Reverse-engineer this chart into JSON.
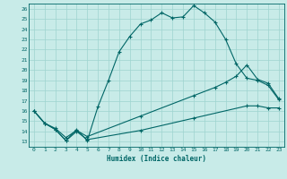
{
  "xlabel": "Humidex (Indice chaleur)",
  "background_color": "#c8ebe8",
  "line_color": "#006666",
  "grid_color": "#9ed4cf",
  "xlim": [
    -0.5,
    23.5
  ],
  "ylim": [
    12.5,
    26.5
  ],
  "yticks": [
    13,
    14,
    15,
    16,
    17,
    18,
    19,
    20,
    21,
    22,
    23,
    24,
    25,
    26
  ],
  "xticks": [
    0,
    1,
    2,
    3,
    4,
    5,
    6,
    7,
    8,
    9,
    10,
    11,
    12,
    13,
    14,
    15,
    16,
    17,
    18,
    19,
    20,
    21,
    22,
    23
  ],
  "line1_x": [
    0,
    1,
    2,
    3,
    4,
    5,
    6,
    7,
    8,
    9,
    10,
    11,
    12,
    13,
    14,
    15,
    16,
    17,
    18,
    19,
    20,
    21,
    22,
    23
  ],
  "line1_y": [
    16.0,
    14.8,
    14.2,
    13.1,
    14.2,
    13.1,
    16.4,
    19.0,
    21.8,
    23.3,
    24.5,
    24.9,
    25.6,
    25.1,
    25.2,
    26.3,
    25.6,
    24.7,
    23.0,
    20.6,
    19.2,
    19.0,
    18.5,
    17.1
  ],
  "line2_x": [
    0,
    1,
    2,
    3,
    4,
    5,
    10,
    15,
    17,
    18,
    19,
    20,
    21,
    22,
    23
  ],
  "line2_y": [
    16.0,
    14.8,
    14.3,
    13.4,
    14.1,
    13.5,
    15.5,
    17.5,
    18.3,
    18.8,
    19.4,
    20.5,
    19.1,
    18.7,
    17.2
  ],
  "line3_x": [
    0,
    1,
    2,
    3,
    4,
    5,
    10,
    15,
    20,
    21,
    22,
    23
  ],
  "line3_y": [
    16.0,
    14.8,
    14.2,
    13.1,
    14.0,
    13.2,
    14.1,
    15.3,
    16.5,
    16.5,
    16.3,
    16.3
  ]
}
